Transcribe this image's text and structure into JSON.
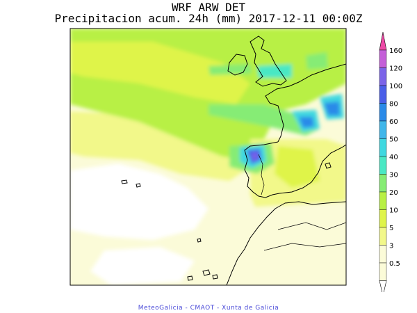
{
  "header": {
    "title": "WRF ARW DET",
    "subtitle": "Precipitacion acum. 24h (mm) 2017-12-11 00:00Z"
  },
  "legend": {
    "levels": [
      "160",
      "120",
      "100",
      "80",
      "60",
      "50",
      "40",
      "30",
      "20",
      "10",
      "5",
      "3",
      "0.5"
    ],
    "colors": [
      "#ee4aa6",
      "#c45ed8",
      "#7b63e8",
      "#4a5ee8",
      "#2a8ae8",
      "#3fb6ea",
      "#3fd8e0",
      "#4ae8c4",
      "#86ec74",
      "#b8f044",
      "#dff44a",
      "#f2f88a",
      "#fbfbd8"
    ]
  },
  "colors": {
    "frame": "#000000",
    "coast": "#000000",
    "credit": "#4a4ad8"
  },
  "footer": {
    "credit": "MeteoGalicia - CMAOT - Xunta de Galicia"
  }
}
